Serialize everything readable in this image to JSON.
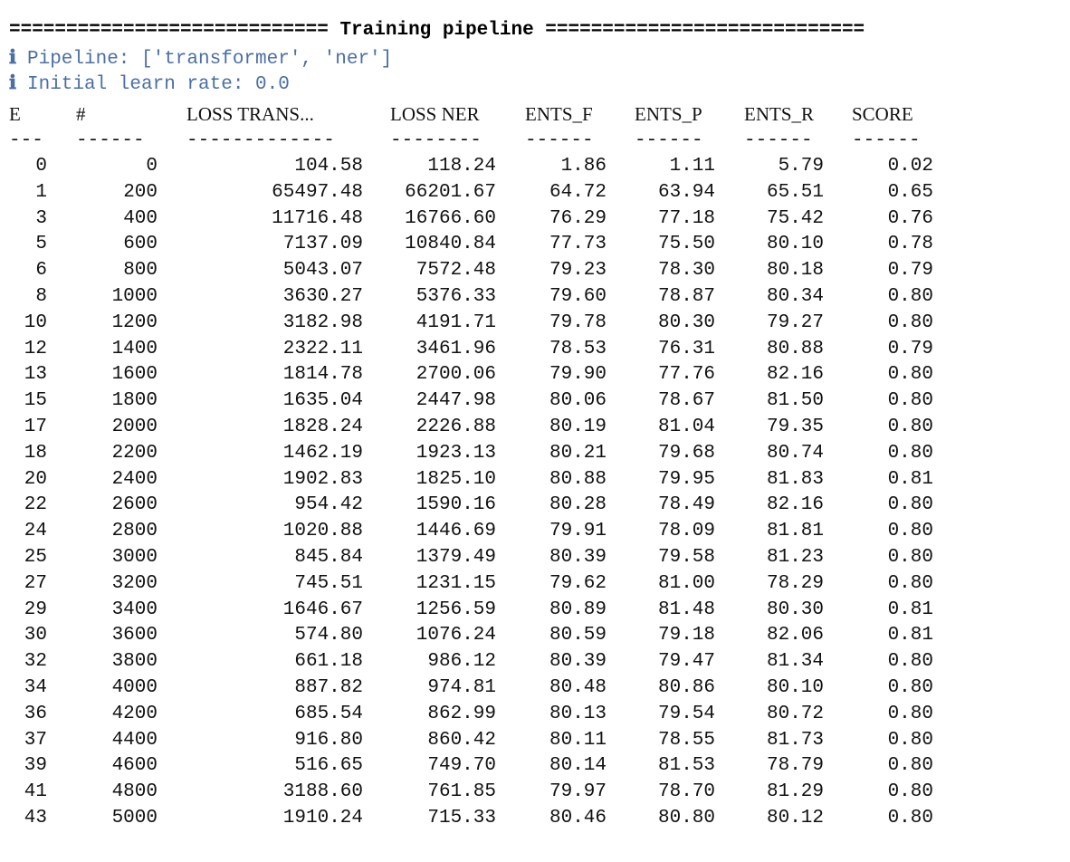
{
  "banner": "============================ Training pipeline ============================",
  "info": [
    {
      "icon": "info-icon",
      "glyph": "ℹ",
      "text": "Pipeline: ['transformer', 'ner']"
    },
    {
      "icon": "info-icon",
      "glyph": "ℹ",
      "text": "Initial learn rate: 0.0"
    }
  ],
  "table": {
    "headers": [
      "E",
      "#",
      "LOSS TRANS...",
      "LOSS NER",
      "ENTS_F",
      "ENTS_P",
      "ENTS_R",
      "SCORE"
    ],
    "dashes": [
      "---",
      "------",
      "-------------",
      "--------",
      "------",
      "------",
      "------",
      "------"
    ],
    "rows": [
      [
        "0",
        "0",
        "104.58",
        "118.24",
        "1.86",
        "1.11",
        "5.79",
        "0.02"
      ],
      [
        "1",
        "200",
        "65497.48",
        "66201.67",
        "64.72",
        "63.94",
        "65.51",
        "0.65"
      ],
      [
        "3",
        "400",
        "11716.48",
        "16766.60",
        "76.29",
        "77.18",
        "75.42",
        "0.76"
      ],
      [
        "5",
        "600",
        "7137.09",
        "10840.84",
        "77.73",
        "75.50",
        "80.10",
        "0.78"
      ],
      [
        "6",
        "800",
        "5043.07",
        "7572.48",
        "79.23",
        "78.30",
        "80.18",
        "0.79"
      ],
      [
        "8",
        "1000",
        "3630.27",
        "5376.33",
        "79.60",
        "78.87",
        "80.34",
        "0.80"
      ],
      [
        "10",
        "1200",
        "3182.98",
        "4191.71",
        "79.78",
        "80.30",
        "79.27",
        "0.80"
      ],
      [
        "12",
        "1400",
        "2322.11",
        "3461.96",
        "78.53",
        "76.31",
        "80.88",
        "0.79"
      ],
      [
        "13",
        "1600",
        "1814.78",
        "2700.06",
        "79.90",
        "77.76",
        "82.16",
        "0.80"
      ],
      [
        "15",
        "1800",
        "1635.04",
        "2447.98",
        "80.06",
        "78.67",
        "81.50",
        "0.80"
      ],
      [
        "17",
        "2000",
        "1828.24",
        "2226.88",
        "80.19",
        "81.04",
        "79.35",
        "0.80"
      ],
      [
        "18",
        "2200",
        "1462.19",
        "1923.13",
        "80.21",
        "79.68",
        "80.74",
        "0.80"
      ],
      [
        "20",
        "2400",
        "1902.83",
        "1825.10",
        "80.88",
        "79.95",
        "81.83",
        "0.81"
      ],
      [
        "22",
        "2600",
        "954.42",
        "1590.16",
        "80.28",
        "78.49",
        "82.16",
        "0.80"
      ],
      [
        "24",
        "2800",
        "1020.88",
        "1446.69",
        "79.91",
        "78.09",
        "81.81",
        "0.80"
      ],
      [
        "25",
        "3000",
        "845.84",
        "1379.49",
        "80.39",
        "79.58",
        "81.23",
        "0.80"
      ],
      [
        "27",
        "3200",
        "745.51",
        "1231.15",
        "79.62",
        "81.00",
        "78.29",
        "0.80"
      ],
      [
        "29",
        "3400",
        "1646.67",
        "1256.59",
        "80.89",
        "81.48",
        "80.30",
        "0.81"
      ],
      [
        "30",
        "3600",
        "574.80",
        "1076.24",
        "80.59",
        "79.18",
        "82.06",
        "0.81"
      ],
      [
        "32",
        "3800",
        "661.18",
        "986.12",
        "80.39",
        "79.47",
        "81.34",
        "0.80"
      ],
      [
        "34",
        "4000",
        "887.82",
        "974.81",
        "80.48",
        "80.86",
        "80.10",
        "0.80"
      ],
      [
        "36",
        "4200",
        "685.54",
        "862.99",
        "80.13",
        "79.54",
        "80.72",
        "0.80"
      ],
      [
        "37",
        "4400",
        "916.80",
        "860.42",
        "80.11",
        "78.55",
        "81.73",
        "0.80"
      ],
      [
        "39",
        "4600",
        "516.65",
        "749.70",
        "80.14",
        "81.53",
        "78.79",
        "0.80"
      ],
      [
        "41",
        "4800",
        "3188.60",
        "761.85",
        "79.97",
        "78.70",
        "81.29",
        "0.80"
      ],
      [
        "43",
        "5000",
        "1910.24",
        "715.33",
        "80.46",
        "80.80",
        "80.12",
        "0.80"
      ]
    ]
  },
  "colors": {
    "info": "#4a6fa5",
    "text": "#111111",
    "background": "#ffffff"
  }
}
